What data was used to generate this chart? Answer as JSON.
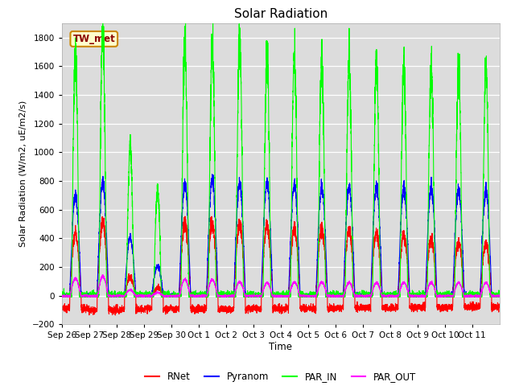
{
  "title": "Solar Radiation",
  "ylabel": "Solar Radiation (W/m2, uE/m2/s)",
  "xlabel": "Time",
  "ylim": [
    -200,
    1900
  ],
  "yticks": [
    -200,
    0,
    200,
    400,
    600,
    800,
    1000,
    1200,
    1400,
    1600,
    1800
  ],
  "station_label": "TW_met",
  "colors": {
    "RNet": "#ff0000",
    "Pyranom": "#0000ff",
    "PAR_IN": "#00ff00",
    "PAR_OUT": "#ff00ff"
  },
  "bg_color": "#dcdcdc",
  "fig_color": "#ffffff",
  "n_days": 16,
  "xtick_labels": [
    "Sep 26",
    "Sep 27",
    "Sep 28",
    "Sep 29",
    "Sep 30",
    "Oct 1",
    "Oct 2",
    "Oct 3",
    "Oct 4",
    "Oct 5",
    "Oct 6",
    "Oct 7",
    "Oct 8",
    "Oct 9",
    "Oct 10",
    "Oct 11"
  ],
  "par_in_peaks": [
    1720,
    1850,
    1025,
    730,
    1755,
    1755,
    1780,
    1670,
    1660,
    1640,
    1620,
    1615,
    1610,
    1600,
    1605,
    1585
  ],
  "pyranom_peaks": [
    690,
    790,
    400,
    205,
    775,
    805,
    790,
    785,
    770,
    755,
    755,
    750,
    748,
    748,
    738,
    733
  ],
  "rnet_peaks": [
    430,
    510,
    120,
    50,
    500,
    495,
    495,
    490,
    455,
    460,
    450,
    435,
    415,
    402,
    372,
    362
  ],
  "par_out_peaks": [
    120,
    132,
    40,
    20,
    112,
    112,
    95,
    90,
    92,
    92,
    90,
    90,
    90,
    90,
    90,
    90
  ],
  "rnet_night": [
    -90,
    -100,
    -100,
    -90,
    -95,
    -95,
    -95,
    -90,
    -90,
    -90,
    -85,
    -85,
    -85,
    -80,
    -80,
    -80
  ]
}
